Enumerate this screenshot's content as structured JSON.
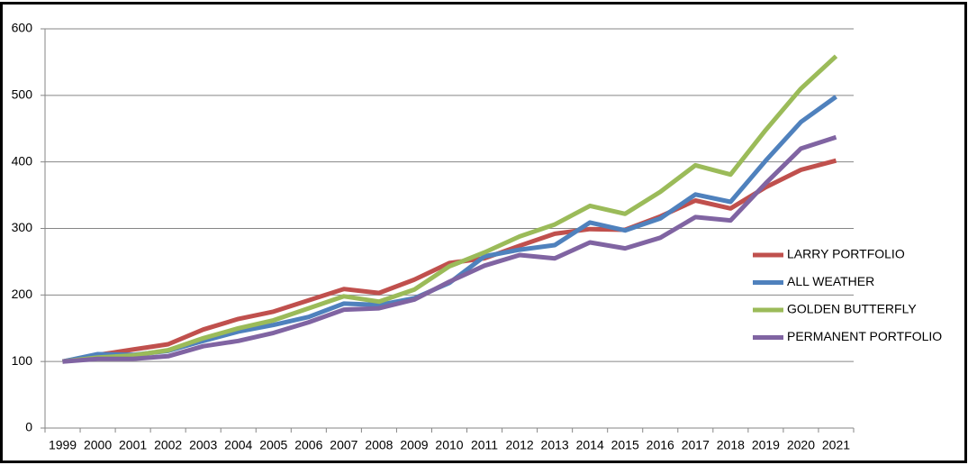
{
  "chart_data": {
    "type": "line",
    "categories": [
      "1999",
      "2000",
      "2001",
      "2002",
      "2003",
      "2004",
      "2005",
      "2006",
      "2007",
      "2008",
      "2009",
      "2010",
      "2011",
      "2012",
      "2013",
      "2014",
      "2015",
      "2016",
      "2017",
      "2018",
      "2019",
      "2020",
      "2021"
    ],
    "series": [
      {
        "name": "LARRY PORTFOLIO",
        "color": "#c0504d",
        "values": [
          100,
          110,
          118,
          126,
          148,
          164,
          175,
          192,
          209,
          203,
          223,
          248,
          255,
          274,
          292,
          299,
          298,
          318,
          342,
          330,
          362,
          388,
          402
        ]
      },
      {
        "name": "ALL WEATHER",
        "color": "#4f81bd",
        "values": [
          100,
          111,
          110,
          116,
          131,
          145,
          155,
          167,
          187,
          185,
          195,
          218,
          258,
          268,
          275,
          309,
          297,
          315,
          351,
          340,
          402,
          460,
          498
        ]
      },
      {
        "name": "GOLDEN BUTTERFLY",
        "color": "#9bbb59",
        "values": [
          100,
          106,
          109,
          117,
          135,
          150,
          162,
          180,
          198,
          190,
          208,
          243,
          264,
          288,
          306,
          334,
          322,
          355,
          395,
          381,
          448,
          510,
          559
        ]
      },
      {
        "name": "PERMANENT PORTFOLIO",
        "color": "#8064a2",
        "values": [
          100,
          104,
          104,
          108,
          123,
          131,
          143,
          159,
          178,
          180,
          193,
          220,
          244,
          260,
          255,
          279,
          270,
          286,
          317,
          312,
          368,
          420,
          437
        ]
      }
    ],
    "ylim": [
      0,
      600
    ],
    "yticks": [
      0,
      100,
      200,
      300,
      400,
      500,
      600
    ],
    "grid": true,
    "legend": "right"
  }
}
